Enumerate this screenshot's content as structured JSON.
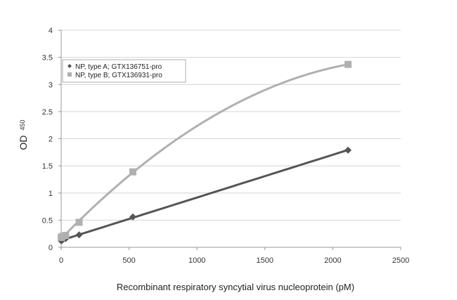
{
  "chart_data": {
    "type": "scatter",
    "title": "",
    "xlabel": "Recombinant respiratory syncytial virus nucleoprotein (pM)",
    "ylabel": "OD",
    "ylabel_subscript": "450",
    "xlim": [
      0,
      2500
    ],
    "ylim": [
      0,
      4
    ],
    "x_ticks": [
      0,
      500,
      1000,
      1500,
      2000,
      2500
    ],
    "y_ticks": [
      0,
      0.5,
      1,
      1.5,
      2,
      2.5,
      3,
      3.5,
      4
    ],
    "y_tick_labels": [
      "0",
      "0.5",
      "1",
      "1.5",
      "2",
      "2.5",
      "3",
      "3.5",
      "4"
    ],
    "grid": true,
    "legend_position": "top-left",
    "series": [
      {
        "name": "NP, type A; GTX136751-pro",
        "marker": "diamond",
        "color": "#555555",
        "fit": "linear",
        "x": [
          0,
          8,
          33,
          132,
          528,
          2112
        ],
        "y": [
          0.12,
          0.13,
          0.16,
          0.23,
          0.56,
          1.79
        ]
      },
      {
        "name": "NP, type B; GTX136931-pro",
        "marker": "square",
        "color": "#b0b0b0",
        "fit": "poly2",
        "x": [
          0,
          8,
          33,
          132,
          528,
          2112
        ],
        "y": [
          0.18,
          0.2,
          0.22,
          0.46,
          1.39,
          3.37
        ]
      }
    ]
  }
}
